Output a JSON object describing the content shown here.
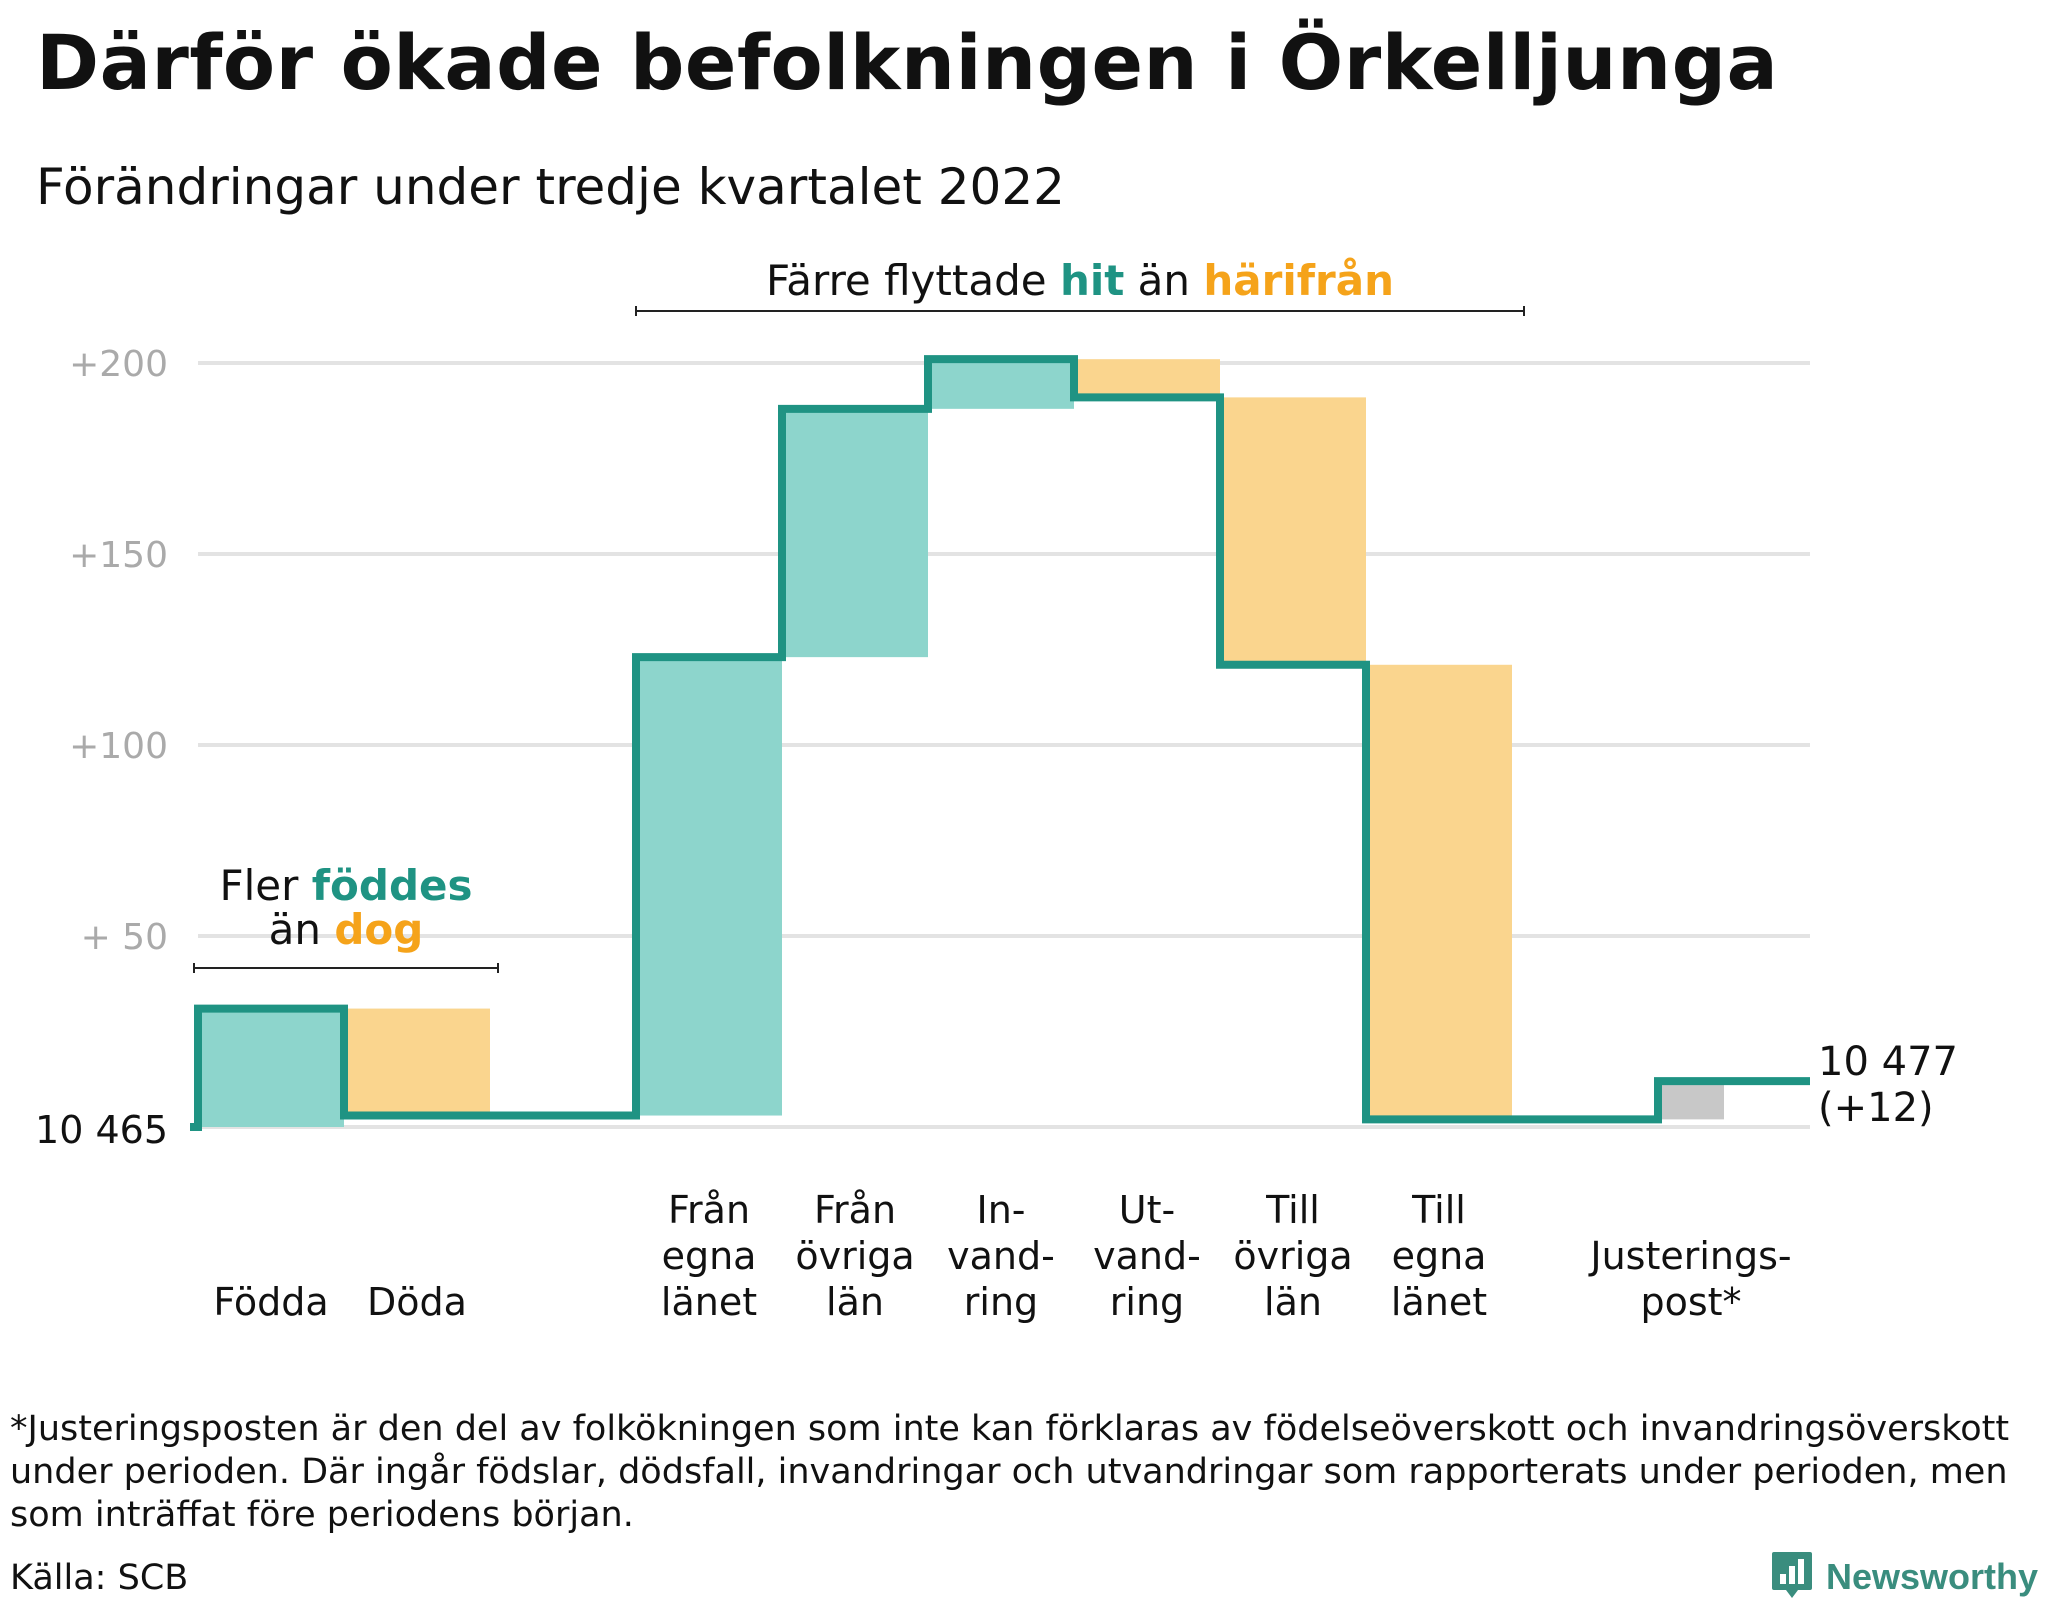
{
  "title": "Därför ökade befolkningen i Örkelljunga",
  "subtitle": "Förändringar under tredje kvartalet 2022",
  "footnote": "*Justeringsposten är den del av folkökningen som inte kan förklaras av födelseöverskott och invandringsöverskott under perioden. Där ingår födslar, dödsfall, invandringar och utvandringar som rapporterats under perioden, men som inträffat före periodens början.",
  "source": "Källa: SCB",
  "brand": "Newsworthy",
  "colors": {
    "increase": "#8dd5cc",
    "decrease": "#fad58e",
    "adjustment": "#c8c8c8",
    "line": "#1f9383",
    "accent_teal": "#1f9383",
    "accent_orange": "#f5a31a",
    "grid": "#e3e3e3",
    "axis_text": "#aaaaaa"
  },
  "annotations": {
    "births": {
      "line1_prefix": "Fler ",
      "line1_highlight": "föddes",
      "line2_prefix": "än ",
      "line2_highlight": "dog"
    },
    "migration": {
      "prefix": "Färre flyttade ",
      "highlight1": "hit",
      "middle": " än ",
      "highlight2": "härifrån"
    }
  },
  "chart_data": {
    "type": "waterfall",
    "start_label": "10 465",
    "end_label_value": "10 477",
    "end_label_change": "(+12)",
    "ytick_labels": [
      "+200",
      "+150",
      "+100",
      "+ 50"
    ],
    "yticks": [
      200,
      150,
      100,
      50
    ],
    "ylim": [
      0,
      200
    ],
    "grid": true,
    "steps": [
      {
        "label": [
          "Födda"
        ],
        "value": 31,
        "kind": "increase",
        "gap_before": false
      },
      {
        "label": [
          "Döda"
        ],
        "value": -28,
        "kind": "decrease",
        "gap_before": false
      },
      {
        "label": [
          "Från",
          "egna",
          "länet"
        ],
        "value": 120,
        "kind": "increase",
        "gap_before": true
      },
      {
        "label": [
          "Från",
          "övriga",
          "län"
        ],
        "value": 65,
        "kind": "increase",
        "gap_before": false
      },
      {
        "label": [
          "In-",
          "vand-",
          "ring"
        ],
        "value": 13,
        "kind": "increase",
        "gap_before": false
      },
      {
        "label": [
          "Ut-",
          "vand-",
          "ring"
        ],
        "value": -10,
        "kind": "decrease",
        "gap_before": false
      },
      {
        "label": [
          "Till",
          "övriga",
          "län"
        ],
        "value": -70,
        "kind": "decrease",
        "gap_before": false
      },
      {
        "label": [
          "Till",
          "egna",
          "länet"
        ],
        "value": -119,
        "kind": "decrease",
        "gap_before": false
      },
      {
        "label": [
          "Justerings-",
          "post*"
        ],
        "value": 10,
        "kind": "adjustment",
        "gap_before": true
      }
    ]
  }
}
